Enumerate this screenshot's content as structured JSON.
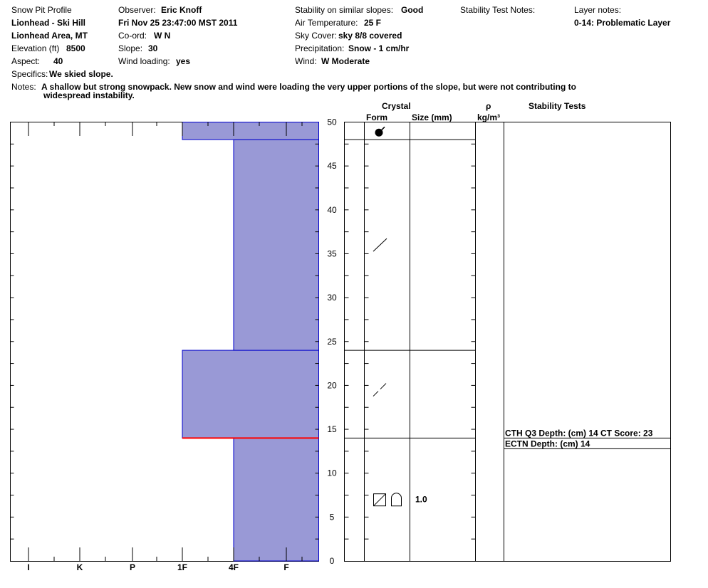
{
  "header": {
    "col1": {
      "title": "Snow Pit Profile",
      "location": "Lionhead - Ski Hill",
      "area": "Lionhead Area, MT",
      "elevation_label": "Elevation (ft)",
      "elevation_value": "8500",
      "aspect_label": "Aspect:",
      "aspect_value": "40"
    },
    "col2": {
      "observer_label": "Observer:",
      "observer_value": "Eric Knoff",
      "datetime": "Fri Nov 25 23:47:00 MST 2011",
      "coord_label": "Co-ord:",
      "coord_value": "W  N",
      "slope_label": "Slope:",
      "slope_value": "30",
      "wind_loading_label": "Wind loading:",
      "wind_loading_value": "yes"
    },
    "col3": {
      "stability_label": "Stability on similar slopes:",
      "stability_value": "Good",
      "air_temp_label": "Air Temperature:",
      "air_temp_value": "25 F",
      "sky_label": "Sky Cover:",
      "sky_value": "sky 8/8 covered",
      "precip_label": "Precipitation:",
      "precip_value": "Snow - 1 cm/hr",
      "wind_label": "Wind:",
      "wind_value": "W Moderate"
    },
    "col4": {
      "stability_test_notes_label": "Stability Test Notes:"
    },
    "col5": {
      "layer_notes_label": "Layer notes:",
      "layer_note_1": "0-14: Problematic Layer"
    },
    "specifics_label": "Specifics:",
    "specifics_value": "We skied slope.",
    "notes_label": "Notes:",
    "notes_line1": "A shallow but strong snowpack.  New snow and wind were loading the very upper portions of the slope, but were not contributing to",
    "notes_line2": "widespread instability."
  },
  "columns": {
    "crystal": "Crystal",
    "form": "Form",
    "size": "Size (mm)",
    "rho": "ρ",
    "density_unit": "kg/m³",
    "stability_tests": "Stability Tests"
  },
  "stability_tests": [
    {
      "depth_cm": 14,
      "text": "CTH Q3 Depth: (cm) 14 CT Score: 23"
    },
    {
      "depth_cm": 14,
      "text": "ECTN  Depth: (cm) 14"
    }
  ],
  "crystals": [
    {
      "height_cm": 48.8,
      "form": "graupel",
      "size": ""
    },
    {
      "height_cm": 36,
      "form": "decomposing",
      "size": ""
    },
    {
      "height_cm": 19.5,
      "form": "decomposing-fragmented",
      "size": ""
    },
    {
      "height_cm": 7,
      "form": "faceted-depth-hoar",
      "size": "1.0"
    }
  ],
  "colors": {
    "layer_fill": "#9999d6",
    "layer_stroke": "#0000cc",
    "weak_layer": "#ff0000"
  },
  "chart_data": {
    "type": "bar",
    "title": "",
    "xlabel": "",
    "ylabel": "",
    "ylim": [
      0,
      50
    ],
    "y_ticks": [
      0,
      5,
      10,
      15,
      20,
      25,
      30,
      35,
      40,
      45,
      50
    ],
    "hardness_scale": [
      "I",
      "K",
      "P",
      "1F",
      "4F",
      "F"
    ],
    "layers": [
      {
        "bottom": 0,
        "top": 14,
        "hardness": "4F"
      },
      {
        "bottom": 14,
        "top": 24,
        "hardness": "1F"
      },
      {
        "bottom": 24,
        "top": 48,
        "hardness": "4F"
      },
      {
        "bottom": 48,
        "top": 50,
        "hardness": "1F"
      }
    ],
    "layer_boundaries": [
      48,
      24,
      14
    ],
    "weak_layer_depth": 14,
    "grid": false,
    "legend": "none"
  }
}
